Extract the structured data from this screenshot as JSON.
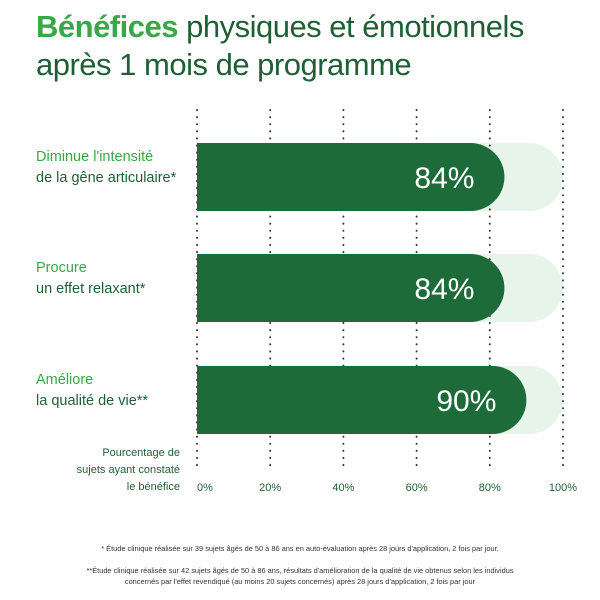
{
  "title": {
    "accent": "Bénéfices",
    "rest_line1": "physiques et émotionnels",
    "line2": "après 1 mois de programme"
  },
  "colors": {
    "bar": "#1e6b3a",
    "track": "#e6f4ea",
    "label": "#37a845",
    "dark_text": "#1f5f35",
    "dots": "#333333"
  },
  "chart_data": {
    "type": "bar",
    "orientation": "horizontal",
    "categories": [
      [
        "Diminue l'intensité",
        "de la gêne articulaire*"
      ],
      [
        "Procure",
        "un effet relaxant*"
      ],
      [
        "Améliore",
        "la qualité de vie**"
      ]
    ],
    "category_highlight": [
      "Diminue l'intensité",
      "Procure",
      "Améliore"
    ],
    "values": [
      84,
      84,
      90
    ],
    "value_labels": [
      "84%",
      "84%",
      "90%"
    ],
    "xlim": [
      0,
      100
    ],
    "x_ticks": [
      "0%",
      "20%",
      "40%",
      "60%",
      "80%",
      "100%"
    ],
    "x_tick_values": [
      0,
      20,
      40,
      60,
      80,
      100
    ],
    "xlabel": [
      "Pourcentage de",
      "sujets ayant constaté",
      "le bénéfice"
    ],
    "grid": "dotted vertical"
  },
  "footnotes": {
    "note1": "* Étude clinique réalisée sur 39 sujets âgés de 50 à 86 ans en auto-évaluation après 28 jours d'application, 2 fois par jour.",
    "note2_line1": "**Étude clinique réalisée sur 42 sujets âgés de 50 à 86 ans, résultats d'amélioration de la qualité de vie obtenus selon les individus",
    "note2_line2": "concernés par l'effet revendiqué (au moins 20 sujets concernés) après 28 jours d'application, 2 fois par jour"
  }
}
